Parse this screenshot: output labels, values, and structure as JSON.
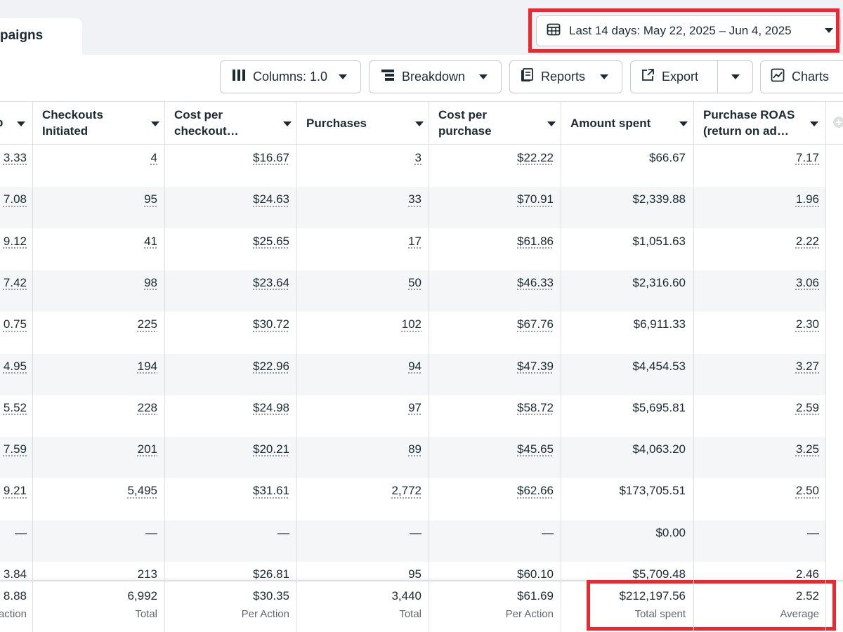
{
  "tab": {
    "label": "paigns"
  },
  "date_range": {
    "label": "Last 14 days: May 22, 2025 – Jun 4, 2025",
    "icon": "calendar-icon"
  },
  "toolbar": {
    "columns_label": "Columns: 1.0",
    "breakdown_label": "Breakdown",
    "reports_label": "Reports",
    "export_label": "Export",
    "charts_label": "Charts"
  },
  "headers": {
    "h0": "p",
    "h1": "Checkouts Initiated",
    "h2": "Cost per checkout…",
    "h3": "Purchases",
    "h4": "Cost per purchase",
    "h5": "Amount spent",
    "h6": "Purchase ROAS (return on ad…"
  },
  "rows": [
    {
      "c0": "3.33",
      "checkouts": "4",
      "cost_checkout": "$16.67",
      "purchases": "3",
      "cost_purchase": "$22.22",
      "spent": "$66.67",
      "roas": "7.17"
    },
    {
      "c0": "7.08",
      "checkouts": "95",
      "cost_checkout": "$24.63",
      "purchases": "33",
      "cost_purchase": "$70.91",
      "spent": "$2,339.88",
      "roas": "1.96"
    },
    {
      "c0": "9.12",
      "checkouts": "41",
      "cost_checkout": "$25.65",
      "purchases": "17",
      "cost_purchase": "$61.86",
      "spent": "$1,051.63",
      "roas": "2.22"
    },
    {
      "c0": "7.42",
      "checkouts": "98",
      "cost_checkout": "$23.64",
      "purchases": "50",
      "cost_purchase": "$46.33",
      "spent": "$2,316.60",
      "roas": "3.06"
    },
    {
      "c0": "0.75",
      "checkouts": "225",
      "cost_checkout": "$30.72",
      "purchases": "102",
      "cost_purchase": "$67.76",
      "spent": "$6,911.33",
      "roas": "2.30"
    },
    {
      "c0": "4.95",
      "checkouts": "194",
      "cost_checkout": "$22.96",
      "purchases": "94",
      "cost_purchase": "$47.39",
      "spent": "$4,454.53",
      "roas": "3.27"
    },
    {
      "c0": "5.52",
      "checkouts": "228",
      "cost_checkout": "$24.98",
      "purchases": "97",
      "cost_purchase": "$58.72",
      "spent": "$5,695.81",
      "roas": "2.59"
    },
    {
      "c0": "7.59",
      "checkouts": "201",
      "cost_checkout": "$20.21",
      "purchases": "89",
      "cost_purchase": "$45.65",
      "spent": "$4,063.20",
      "roas": "3.25"
    },
    {
      "c0": "9.21",
      "checkouts": "5,495",
      "cost_checkout": "$31.61",
      "purchases": "2,772",
      "cost_purchase": "$62.66",
      "spent": "$173,705.51",
      "roas": "2.50"
    },
    {
      "c0": "—",
      "checkouts": "—",
      "cost_checkout": "—",
      "purchases": "—",
      "cost_purchase": "—",
      "spent": "$0.00",
      "roas": "—"
    },
    {
      "c0": "3.84",
      "checkouts": "213",
      "cost_checkout": "$26.81",
      "purchases": "95",
      "cost_purchase": "$60.10",
      "spent": "$5,709.48",
      "roas": "2.46"
    }
  ],
  "totals": {
    "c0": "8.88",
    "c0_sub": "action",
    "checkouts": "6,992",
    "checkouts_sub": "Total",
    "cost_checkout": "$30.35",
    "cost_checkout_sub": "Per Action",
    "purchases": "3,440",
    "purchases_sub": "Total",
    "cost_purchase": "$61.69",
    "cost_purchase_sub": "Per Action",
    "spent": "$212,197.56",
    "spent_sub": "Total spent",
    "roas": "2.52",
    "roas_sub": "Average"
  },
  "colors": {
    "highlight": "#f0262f",
    "text": "#1c2b33",
    "border": "#dddfe2",
    "row_alt": "#f5f6f7"
  }
}
